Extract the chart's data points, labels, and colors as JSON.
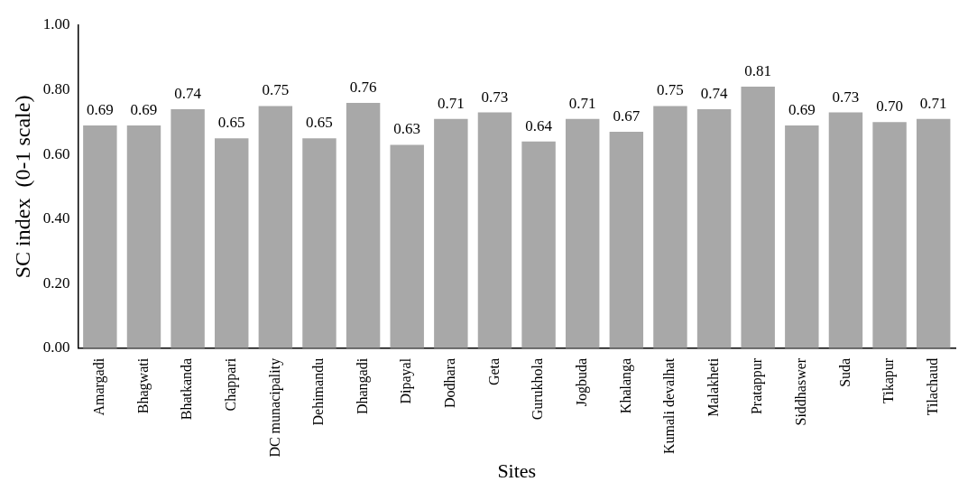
{
  "chart_data": {
    "type": "bar",
    "xlabel": "Sites",
    "ylabel": "SC index  (0-1 scale)",
    "categories": [
      "Amargadi",
      "Bhagwati",
      "Bhatkanda",
      "Chappari",
      "DC munacipality",
      "Dehimandu",
      "Dhangadi",
      "Dipayal",
      "Dodhara",
      "Geta",
      "Gurukhola",
      "Jogbuda",
      "Khalanga",
      "Kumali devalhat",
      "Malakheti",
      "Pratappur",
      "Siddhaswer",
      "Suda",
      "Tikapur",
      "Tilachaud"
    ],
    "values": [
      0.69,
      0.69,
      0.74,
      0.65,
      0.75,
      0.65,
      0.76,
      0.63,
      0.71,
      0.73,
      0.64,
      0.71,
      0.67,
      0.75,
      0.74,
      0.81,
      0.69,
      0.73,
      0.7,
      0.71
    ],
    "value_labels": [
      "0.69",
      "0.69",
      "0.74",
      "0.65",
      "0.75",
      "0.65",
      "0.76",
      "0.63",
      "0.71",
      "0.73",
      "0.64",
      "0.71",
      "0.67",
      "0.75",
      "0.74",
      "0.81",
      "0.69",
      "0.73",
      "0.70",
      "0.71"
    ],
    "color": "#a8a8a8",
    "ylim": [
      0,
      1
    ],
    "yticks": [
      {
        "value": 0,
        "label": "0.00"
      },
      {
        "value": 0.2,
        "label": "0.20"
      },
      {
        "value": 0.4,
        "label": "0.40"
      },
      {
        "value": 0.6,
        "label": "0.60"
      },
      {
        "value": 0.8,
        "label": "0.80"
      },
      {
        "value": 1,
        "label": "1.00"
      }
    ]
  }
}
